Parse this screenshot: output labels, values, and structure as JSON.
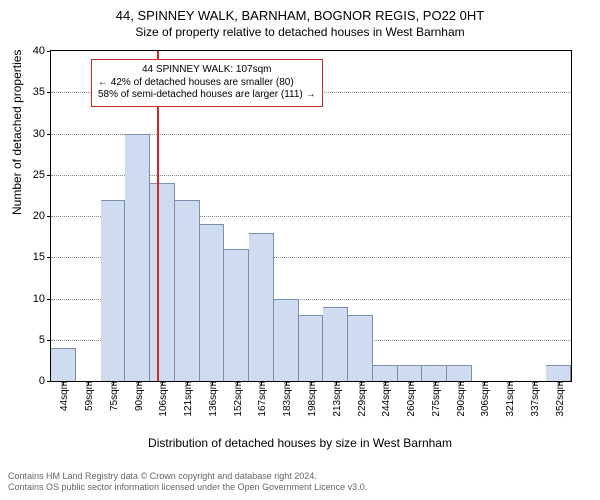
{
  "title": "44, SPINNEY WALK, BARNHAM, BOGNOR REGIS, PO22 0HT",
  "subtitle": "Size of property relative to detached houses in West Barnham",
  "yaxis": {
    "label": "Number of detached properties",
    "min": 0,
    "max": 40,
    "ticks": [
      0,
      5,
      10,
      15,
      20,
      25,
      30,
      35,
      40
    ]
  },
  "xaxis": {
    "label": "Distribution of detached houses by size in West Barnham",
    "ticks": [
      "44sqm",
      "59sqm",
      "75sqm",
      "90sqm",
      "106sqm",
      "121sqm",
      "136sqm",
      "152sqm",
      "167sqm",
      "183sqm",
      "198sqm",
      "213sqm",
      "229sqm",
      "244sqm",
      "260sqm",
      "275sqm",
      "290sqm",
      "306sqm",
      "321sqm",
      "337sqm",
      "352sqm"
    ]
  },
  "histogram": {
    "type": "histogram",
    "bar_color": "#cfdcef",
    "bar_border_color": "#7a8fb0",
    "background_color": "#ffffff",
    "grid_color": "#888888",
    "values": [
      4,
      0,
      22,
      30,
      24,
      22,
      19,
      16,
      18,
      10,
      8,
      9,
      8,
      2,
      2,
      2,
      2,
      0,
      0,
      0,
      2
    ]
  },
  "reference_line": {
    "value_sqm": 107,
    "color": "#d62728"
  },
  "annotation": {
    "lines": [
      "44 SPINNEY WALK: 107sqm",
      "← 42% of detached houses are smaller (80)",
      "58% of semi-detached houses are larger (111) →"
    ],
    "border_color": "#d62728"
  },
  "footer": {
    "line1": "Contains HM Land Registry data © Crown copyright and database right 2024.",
    "line2": "Contains OS public sector information licensed under the Open Government Licence v3.0."
  }
}
